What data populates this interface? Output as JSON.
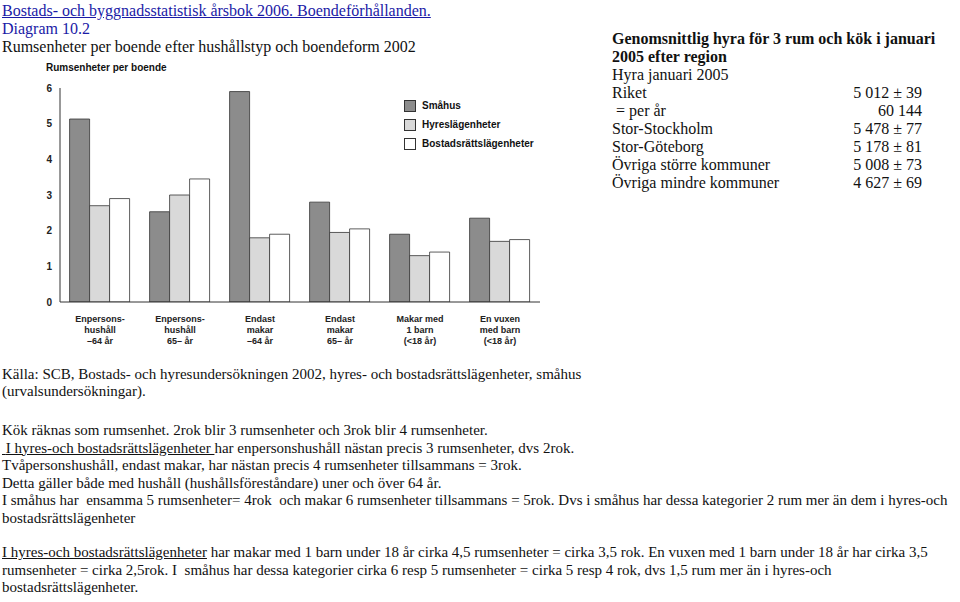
{
  "header": {
    "title": "Bostads- och byggnadsstatistisk årsbok 2006. Boendeförhållanden.",
    "subtitle": "Diagram 10.2"
  },
  "chart_data": {
    "type": "bar",
    "title": "Rumsenheter per boende efter hushållstyp och boendeform 2002",
    "y_label": "Rumsenheter per boende",
    "categories": [
      "Enpersons-\nhushåll\n–64 år",
      "Enpersons-\nhushåll\n65– år",
      "Endast\nmakar\n–64 år",
      "Endast\nmakar\n65– år",
      "Makar med\n1 barn\n(<18 år)",
      "En vuxen\nmed barn\n(<18 år)"
    ],
    "series": [
      {
        "name": "Småhus",
        "color": "#8c8c8c",
        "values": [
          5.13,
          2.53,
          5.9,
          2.8,
          1.9,
          2.35
        ]
      },
      {
        "name": "Hyreslägenheter",
        "color": "#d9d9d9",
        "values": [
          2.7,
          3.0,
          1.8,
          1.95,
          1.3,
          1.7
        ]
      },
      {
        "name": "Bostadsrättslägenheter",
        "color": "#ffffff",
        "values": [
          2.9,
          3.45,
          1.9,
          2.05,
          1.4,
          1.75
        ]
      }
    ],
    "ylim": [
      0,
      6
    ],
    "yticks": [
      0,
      1,
      2,
      3,
      4,
      5,
      6
    ],
    "grid": false,
    "legend": "upper right"
  },
  "rent_table": {
    "title": "Genomsnittlig hyra för 3 rum och kök i januari 2005 efter region",
    "subtitle": "Hyra januari 2005",
    "rows": [
      [
        "Riket",
        "5 012 ± 39"
      ],
      [
        " = per år",
        "60 144"
      ],
      [
        "Stor-Stockholm",
        "5 478 ± 77"
      ],
      [
        "Stor-Göteborg",
        "5 178 ± 81"
      ],
      [
        "Övriga större kommuner",
        "5 008 ± 73"
      ],
      [
        "Övriga mindre kommuner",
        "4 627 ± 69"
      ]
    ]
  },
  "source": "Källa: SCB, Bostads- och hyresundersökningen 2002, hyres- och bostadsrättslägenheter, småhus (urvalsundersökningar).",
  "paragraphs": [
    [
      {
        "text": "Kök räknas som rumsenhet. 2rok blir 3 rumsenheter och 3rok blir 4 rumsenheter.",
        "underline": false
      }
    ],
    [
      {
        "text": " I hyres-och bostadsrättslägenheter ",
        "underline": true
      },
      {
        "text": "har enpersonshushåll nästan precis 3 rumsenheter, dvs 2rok.",
        "underline": false
      }
    ],
    [
      {
        "text": "Tvåpersonshushåll, endast makar, har nästan precis 4 rumsenheter tillsammans = 3rok.",
        "underline": false
      }
    ],
    [
      {
        "text": "Detta gäller både med hushåll (hushållsföreståndare) uner och över 64 år.",
        "underline": false
      }
    ],
    [
      {
        "text": "I småhus har  ensamma 5 rumsenheter= 4rok  och makar 6 rumsenheter tillsammans = 5rok. Dvs i småhus har dessa kategorier 2 rum mer än dem i hyres-och bostadsrättslägenheter",
        "underline": false
      }
    ],
    [
      {
        "text": "I hyres-och bostadsrättslägenheter",
        "underline": true
      },
      {
        "text": " har makar med 1 barn under 18 år cirka 4,5 rumsenheter = cirka 3,5 rok. En vuxen med 1 barn under 18 år har cirka 3,5 rumsenheter = cirka 2,5rok. I  småhus har dessa kategorier cirka 6 resp 5 rumsenheter = cirka 5 resp 4 rok, dvs 1,5 rum mer än i hyres-och bostadsrättslägenheter.",
        "underline": false
      }
    ]
  ]
}
